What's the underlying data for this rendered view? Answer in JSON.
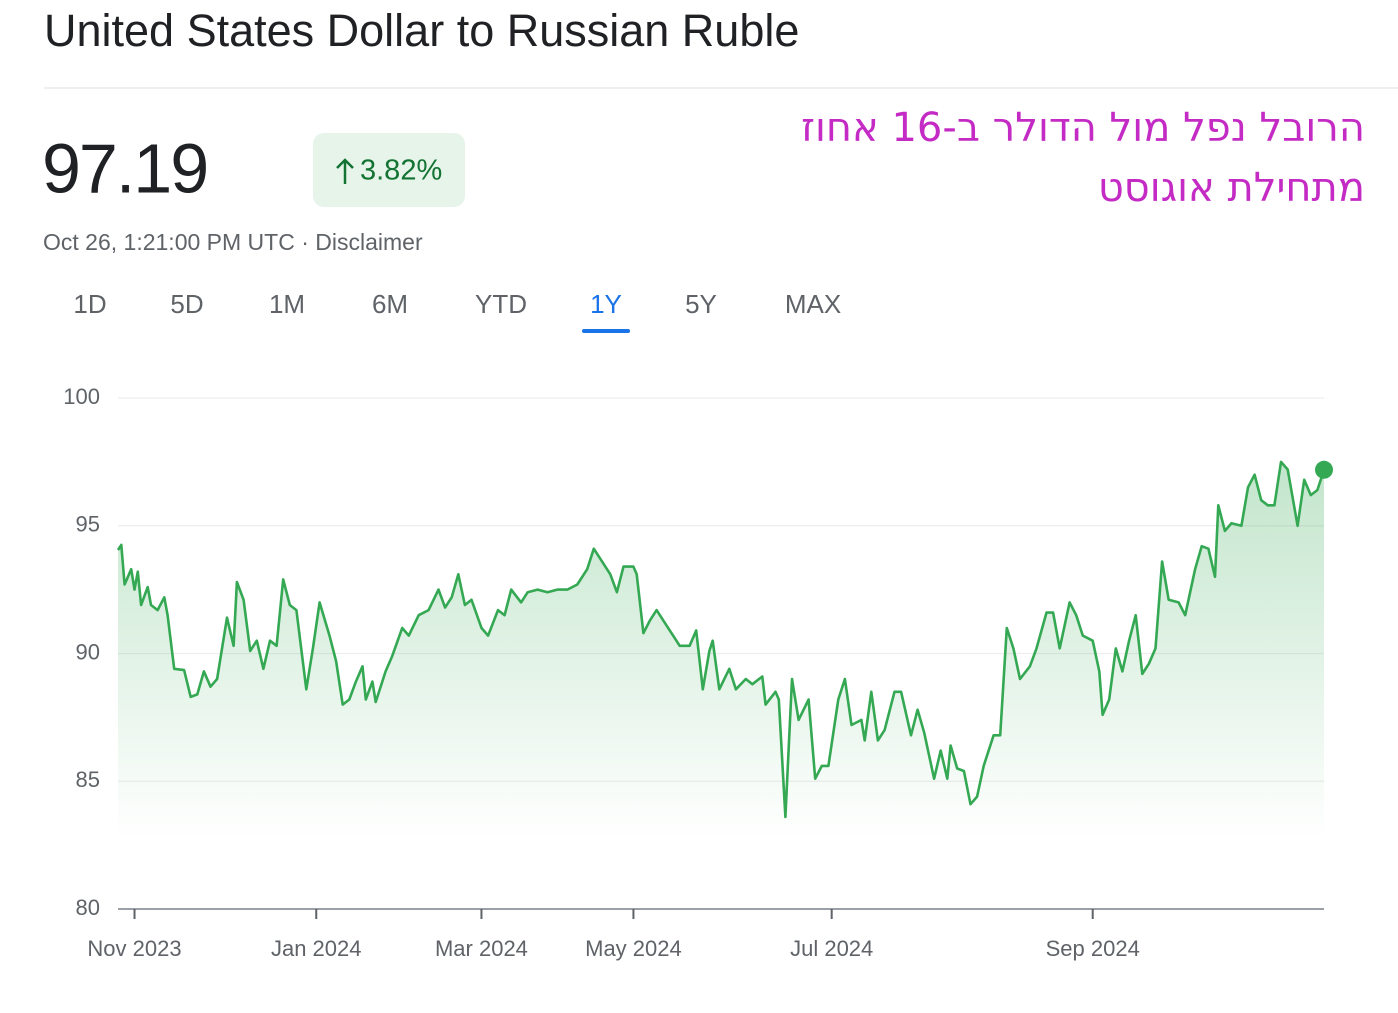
{
  "header": {
    "title": "United States Dollar to Russian Ruble",
    "price": "97.19",
    "change": "3.82%",
    "timestamp": "Oct 26, 1:21:00 PM UTC · Disclaimer",
    "annotation": [
      "הרובל נפל מול הדולר ב-16 אחוז",
      "מתחילת אוגוסט"
    ],
    "tabs": [
      "1D",
      "5D",
      "1M",
      "6M",
      "YTD",
      "1Y",
      "5Y",
      "MAX"
    ],
    "selected_tab": "1Y"
  },
  "chart_data": {
    "type": "line",
    "color": "#34a853",
    "x": [
      0,
      1,
      2,
      4,
      5,
      6,
      7,
      9,
      10,
      12,
      14,
      15,
      17,
      20,
      22,
      24,
      26,
      28,
      30,
      33,
      35,
      36,
      38,
      40,
      42,
      44,
      46,
      48,
      50,
      52,
      54,
      57,
      59,
      61,
      64,
      66,
      68,
      70,
      72,
      74,
      75,
      77,
      78,
      81,
      83,
      86,
      88,
      91,
      94,
      97,
      99,
      101,
      103,
      105,
      107,
      110,
      112,
      115,
      117,
      119,
      122,
      124,
      127,
      130,
      133,
      136,
      139,
      142,
      144,
      147,
      149,
      151,
      153,
      156,
      157,
      159,
      161,
      163,
      166,
      168,
      170,
      173,
      175,
      177,
      179,
      180,
      182,
      185,
      187,
      190,
      192,
      195,
      196,
      199,
      200,
      202,
      204,
      206,
      209,
      211,
      213,
      215,
      218,
      220,
      222,
      225,
      226,
      228,
      230,
      232,
      235,
      237,
      240,
      242,
      244,
      247,
      249,
      251,
      252,
      254,
      256,
      258,
      260,
      262,
      265,
      267,
      269,
      271,
      273,
      276,
      278,
      281,
      283,
      285,
      288,
      290,
      292,
      295,
      297,
      298,
      300,
      302,
      304,
      306,
      308,
      310,
      312,
      314,
      316,
      318,
      321,
      323,
      326,
      328,
      330,
      332,
      333,
      335,
      337,
      340,
      342,
      344,
      346,
      348,
      350,
      352,
      354,
      357,
      359,
      361,
      363,
      365
    ],
    "values": [
      94.05,
      94.25,
      92.7,
      93.3,
      92.5,
      93.2,
      91.9,
      92.6,
      91.9,
      91.7,
      92.2,
      91.5,
      89.4,
      89.35,
      88.3,
      88.4,
      89.3,
      88.7,
      89.0,
      91.4,
      90.3,
      92.8,
      92.1,
      90.1,
      90.5,
      89.4,
      90.5,
      90.3,
      92.9,
      91.9,
      91.7,
      88.6,
      90.2,
      92.0,
      90.7,
      89.7,
      88.0,
      88.2,
      88.9,
      89.5,
      88.2,
      88.9,
      88.1,
      89.3,
      89.9,
      91.0,
      90.7,
      91.5,
      91.7,
      92.5,
      91.8,
      92.2,
      93.1,
      91.9,
      92.1,
      91.0,
      90.7,
      91.7,
      91.5,
      92.5,
      92.0,
      92.4,
      92.5,
      92.4,
      92.5,
      92.5,
      92.7,
      93.3,
      94.1,
      93.5,
      93.1,
      92.4,
      93.4,
      93.4,
      93.1,
      90.8,
      91.3,
      91.7,
      91.1,
      90.7,
      90.3,
      90.3,
      90.9,
      88.6,
      90.1,
      90.5,
      88.6,
      89.4,
      88.6,
      89.0,
      88.8,
      89.1,
      88.0,
      88.5,
      88.2,
      83.6,
      89.0,
      87.4,
      88.2,
      85.1,
      85.6,
      85.6,
      88.2,
      89.0,
      87.2,
      87.4,
      86.6,
      88.5,
      86.6,
      87.0,
      88.5,
      88.5,
      86.8,
      87.8,
      86.9,
      85.1,
      86.2,
      85.1,
      86.4,
      85.5,
      85.4,
      84.1,
      84.4,
      85.6,
      86.8,
      86.8,
      91.0,
      90.2,
      89.0,
      89.5,
      90.2,
      91.6,
      91.6,
      90.2,
      92.0,
      91.5,
      90.7,
      90.5,
      89.3,
      87.6,
      88.2,
      90.2,
      89.3,
      90.5,
      91.5,
      89.2,
      89.6,
      90.2,
      93.6,
      92.1,
      92.0,
      91.5,
      93.3,
      94.2,
      94.1,
      93.0,
      95.8,
      94.8,
      95.1,
      95.0,
      96.5,
      97.0,
      96.0,
      95.8,
      95.8,
      97.5,
      97.2,
      95.0,
      96.8,
      96.2,
      96.4,
      97.19
    ],
    "xlim": [
      0,
      365
    ],
    "xticks": [
      {
        "value": 5,
        "label": "Nov 2023"
      },
      {
        "value": 60,
        "label": "Jan 2024"
      },
      {
        "value": 110,
        "label": "Mar 2024"
      },
      {
        "value": 156,
        "label": "May 2024"
      },
      {
        "value": 216,
        "label": "Jul 2024"
      },
      {
        "value": 295,
        "label": "Sep 2024"
      }
    ],
    "ylim": [
      80,
      100
    ],
    "yticks": [
      80,
      85,
      90,
      95,
      100
    ],
    "grid": true
  }
}
